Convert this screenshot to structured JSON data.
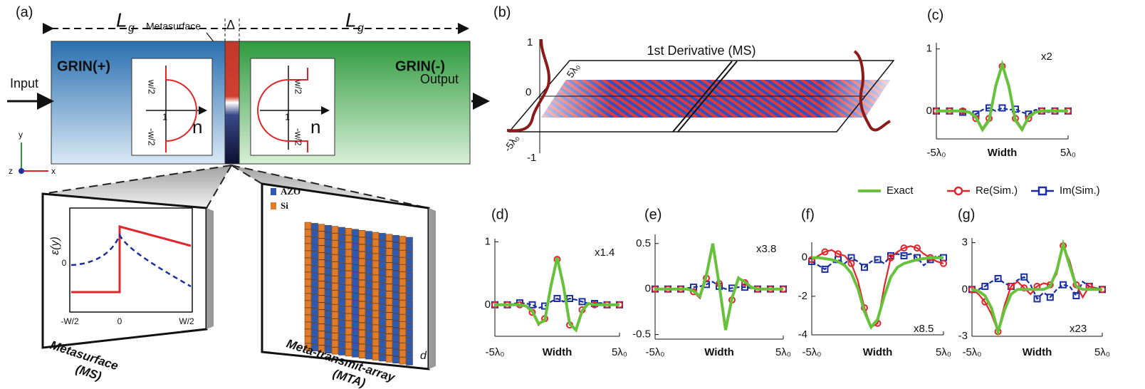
{
  "panel_a": {
    "label": "(a)",
    "length_left": {
      "main": "L",
      "sub": "g"
    },
    "length_right": {
      "main": "L",
      "sub": "g"
    },
    "metasurface_pointer": "Metasurface",
    "gap": "Δ",
    "grin_left": "GRIN(+)",
    "grin_right": "GRIN(-)",
    "input": "Input",
    "output": "Output",
    "inset_left": {
      "top": "w/2",
      "bottom": "-w/2",
      "one": "1",
      "axis": "n"
    },
    "inset_right": {
      "top": "w/2",
      "bottom": "-w/2",
      "one": "1",
      "axis": "n"
    },
    "axes": {
      "y": "y",
      "z": "z",
      "x": "x"
    },
    "ms_plot": {
      "ylabel": "ε(y)",
      "zero": "0",
      "xticks": [
        "-W/2",
        "0",
        "W/2"
      ]
    },
    "ms_caption": [
      "Metasurface",
      "(MS)"
    ],
    "mta_legend": [
      "AZO",
      "Si"
    ],
    "mta_dim": "d",
    "mta_caption": [
      "Meta-transmit-array",
      "(MTA)"
    ]
  },
  "panel_b": {
    "label": "(b)",
    "title": "1st Derivative (MS)",
    "yticks": [
      "1",
      "0",
      "-1"
    ],
    "width_ticks": [
      "5λ₀",
      "-5λ₀"
    ]
  },
  "chart_data": [
    {
      "type": "line",
      "label": "(c)",
      "annotation": "x2",
      "xlabel": "Width",
      "x": [
        -5,
        -4.5,
        -4,
        -3.5,
        -3,
        -2.5,
        -2,
        -1.5,
        -1,
        -0.5,
        0,
        0.5,
        1,
        1.5,
        2,
        2.5,
        3,
        3.5,
        4,
        4.5,
        5
      ],
      "xlim": [
        -5,
        5
      ],
      "xticks": [
        {
          "value": -5,
          "label": "-5λ₀"
        },
        {
          "value": 5,
          "label": "5λ₀"
        }
      ],
      "ylim": [
        -0.45,
        1.1
      ],
      "yticks": [
        1,
        0
      ],
      "series": [
        {
          "name": "Exact",
          "color": "#66c23a",
          "values": [
            0,
            0,
            0,
            0,
            0,
            -0.02,
            -0.1,
            -0.3,
            -0.15,
            0.4,
            0.75,
            0.4,
            -0.15,
            -0.3,
            -0.1,
            -0.02,
            0,
            0,
            0,
            0,
            0
          ]
        },
        {
          "name": "Re(Sim.)",
          "color": "#e0262b",
          "marker": "circle",
          "values": [
            0,
            0,
            0,
            0,
            0,
            -0.03,
            -0.12,
            -0.28,
            -0.12,
            0.42,
            0.72,
            0.42,
            -0.12,
            -0.28,
            -0.12,
            -0.03,
            0,
            0,
            0,
            0,
            0
          ]
        },
        {
          "name": "Im(Sim.)",
          "color": "#1a2fa0",
          "marker": "square",
          "dashed": true,
          "values": [
            0,
            0,
            0,
            0,
            -0.02,
            -0.03,
            -0.05,
            0.02,
            0.05,
            0,
            0.05,
            0.02,
            0.03,
            -0.02,
            -0.05,
            0.02,
            0,
            -0.02,
            0,
            0,
            0
          ]
        }
      ]
    },
    {
      "type": "line",
      "label": "(d)",
      "annotation": "x1.4",
      "xlabel": "Width",
      "x": [
        -5,
        -4.5,
        -4,
        -3.5,
        -3,
        -2.5,
        -2,
        -1.5,
        -1,
        -0.5,
        0,
        0.5,
        1,
        1.5,
        2,
        2.5,
        3,
        3.5,
        4,
        4.5,
        5
      ],
      "xlim": [
        -5,
        5
      ],
      "xticks": [
        {
          "value": -5,
          "label": "-5λ₀"
        },
        {
          "value": 5,
          "label": "5λ₀"
        }
      ],
      "ylim": [
        -0.5,
        1.05
      ],
      "yticks": [
        1,
        0
      ],
      "series": [
        {
          "name": "Exact",
          "color": "#66c23a",
          "values": [
            0,
            0,
            0,
            0,
            0,
            -0.02,
            -0.1,
            -0.3,
            -0.25,
            0.3,
            0.75,
            0.3,
            -0.3,
            -0.4,
            -0.1,
            0.02,
            0,
            0,
            0,
            0,
            0
          ]
        },
        {
          "name": "Re(Sim.)",
          "color": "#e0262b",
          "marker": "circle",
          "values": [
            0,
            0,
            0,
            0,
            0,
            -0.03,
            -0.12,
            -0.32,
            -0.22,
            0.35,
            0.72,
            0.28,
            -0.32,
            -0.38,
            -0.08,
            0.03,
            0,
            0,
            0,
            0,
            0
          ]
        },
        {
          "name": "Im(Sim.)",
          "color": "#1a2fa0",
          "marker": "square",
          "dashed": true,
          "values": [
            0,
            0,
            0,
            0.02,
            0.03,
            0.02,
            0,
            -0.05,
            -0.02,
            0.05,
            0.1,
            0.05,
            0.1,
            0.08,
            0.05,
            0.02,
            0.02,
            0.03,
            0,
            0,
            0
          ]
        }
      ]
    },
    {
      "type": "line",
      "label": "(e)",
      "annotation": "x3.8",
      "xlabel": "Width",
      "x": [
        -5,
        -4.5,
        -4,
        -3.5,
        -3,
        -2.5,
        -2,
        -1.5,
        -1,
        -0.5,
        0,
        0.5,
        1,
        1.5,
        2,
        2.5,
        3,
        3.5,
        4,
        4.5,
        5
      ],
      "xlim": [
        -5,
        5
      ],
      "xticks": [
        {
          "value": -5,
          "label": "-5λ₀"
        },
        {
          "value": 5,
          "label": "5λ₀"
        }
      ],
      "ylim": [
        -0.55,
        0.6
      ],
      "yticks": [
        0.5,
        0,
        -0.5
      ],
      "series": [
        {
          "name": "Exact",
          "color": "#66c23a",
          "values": [
            0,
            0,
            0,
            0,
            0,
            0,
            -0.02,
            -0.08,
            0.15,
            0.5,
            0.05,
            -0.45,
            -0.1,
            0.12,
            0.08,
            0.02,
            0,
            0,
            0,
            0,
            0
          ]
        },
        {
          "name": "Re(Sim.)",
          "color": "#e0262b",
          "marker": "circle",
          "values": [
            0,
            0,
            0,
            0,
            0,
            0,
            -0.03,
            -0.1,
            0.12,
            0.48,
            0.06,
            -0.43,
            -0.12,
            0.13,
            0.07,
            0.02,
            0,
            0,
            0,
            0,
            0
          ]
        },
        {
          "name": "Im(Sim.)",
          "color": "#1a2fa0",
          "marker": "square",
          "dashed": true,
          "values": [
            0,
            0,
            0,
            0,
            0,
            0.01,
            0.02,
            0.03,
            0.05,
            0.08,
            0.03,
            0,
            0.01,
            0.02,
            0.02,
            0.01,
            0,
            0,
            0,
            0,
            0
          ]
        }
      ]
    },
    {
      "type": "line",
      "label": "(f)",
      "annotation": "x8.5",
      "xlabel": "Width",
      "x": [
        -5,
        -4.5,
        -4,
        -3.5,
        -3,
        -2.5,
        -2,
        -1.5,
        -1,
        -0.5,
        0,
        0.5,
        1,
        1.5,
        2,
        2.5,
        3,
        3.5,
        4,
        4.5,
        5
      ],
      "xlim": [
        -5,
        5
      ],
      "xticks": [
        {
          "value": -5,
          "label": "-5λ₀"
        },
        {
          "value": 5,
          "label": "5λ₀"
        }
      ],
      "ylim": [
        -4,
        0.8
      ],
      "yticks": [
        0,
        -2,
        -4
      ],
      "series": [
        {
          "name": "Exact",
          "color": "#66c23a",
          "values": [
            0,
            0,
            -0.05,
            -0.1,
            -0.2,
            -0.4,
            -0.8,
            -1.6,
            -2.8,
            -3.6,
            -3.2,
            -2,
            -1,
            -0.5,
            -0.3,
            -0.2,
            -0.1,
            -0.05,
            0,
            0,
            0
          ]
        },
        {
          "name": "Re(Sim.)",
          "color": "#e0262b",
          "marker": "circle",
          "values": [
            -0.1,
            0.1,
            0.3,
            0.4,
            0.2,
            0.1,
            -0.3,
            -1.2,
            -2.6,
            -3.6,
            -3.4,
            -1.5,
            0,
            0.3,
            0.5,
            0.6,
            0.5,
            0.2,
            0,
            -0.2,
            -0.3
          ]
        },
        {
          "name": "Im(Sim.)",
          "color": "#1a2fa0",
          "marker": "square",
          "dashed": true,
          "values": [
            -0.2,
            -0.4,
            -0.6,
            -0.3,
            -0.1,
            -0.3,
            0,
            -0.2,
            -0.5,
            -0.2,
            -0.1,
            -0.3,
            0.1,
            0.2,
            0.1,
            0.2,
            0,
            -0.4,
            -0.1,
            0.1,
            0
          ]
        }
      ]
    },
    {
      "type": "line",
      "label": "(g)",
      "annotation": "x23",
      "xlabel": "Width",
      "x": [
        -5,
        -4.5,
        -4,
        -3.5,
        -3,
        -2.5,
        -2,
        -1.5,
        -1,
        -0.5,
        0,
        0.5,
        1,
        1.5,
        2,
        2.5,
        3,
        3.5,
        4,
        4.5,
        5
      ],
      "xlim": [
        -5,
        5
      ],
      "xticks": [
        {
          "value": -5,
          "label": "-5λ₀"
        },
        {
          "value": 5,
          "label": "5λ₀"
        }
      ],
      "ylim": [
        -3,
        3.3
      ],
      "yticks": [
        3,
        0,
        -3
      ],
      "series": [
        {
          "name": "Exact",
          "color": "#66c23a",
          "values": [
            0,
            -0.1,
            -0.4,
            -1.2,
            -2.7,
            -1.3,
            -0.3,
            0,
            0,
            0,
            0,
            0,
            0.2,
            1.2,
            2.9,
            1.5,
            0.2,
            0,
            0,
            0,
            0
          ]
        },
        {
          "name": "Re(Sim.)",
          "color": "#e0262b",
          "marker": "circle",
          "values": [
            0,
            -0.3,
            -0.8,
            -1.6,
            -2.7,
            -1,
            0.2,
            0.5,
            0.1,
            -0.3,
            0.2,
            0.4,
            0.3,
            1,
            2.8,
            1.8,
            0.3,
            -0.5,
            0.2,
            0.1,
            0
          ]
        },
        {
          "name": "Im(Sim.)",
          "color": "#1a2fa0",
          "marker": "square",
          "dashed": true,
          "values": [
            0,
            0,
            0.2,
            0.5,
            0.7,
            0.4,
            0.2,
            0.6,
            0.8,
            0.3,
            -0.6,
            -0.2,
            -0.5,
            0,
            0.3,
            0.2,
            -0.4,
            0.5,
            0.2,
            0,
            0
          ]
        }
      ]
    }
  ]
}
